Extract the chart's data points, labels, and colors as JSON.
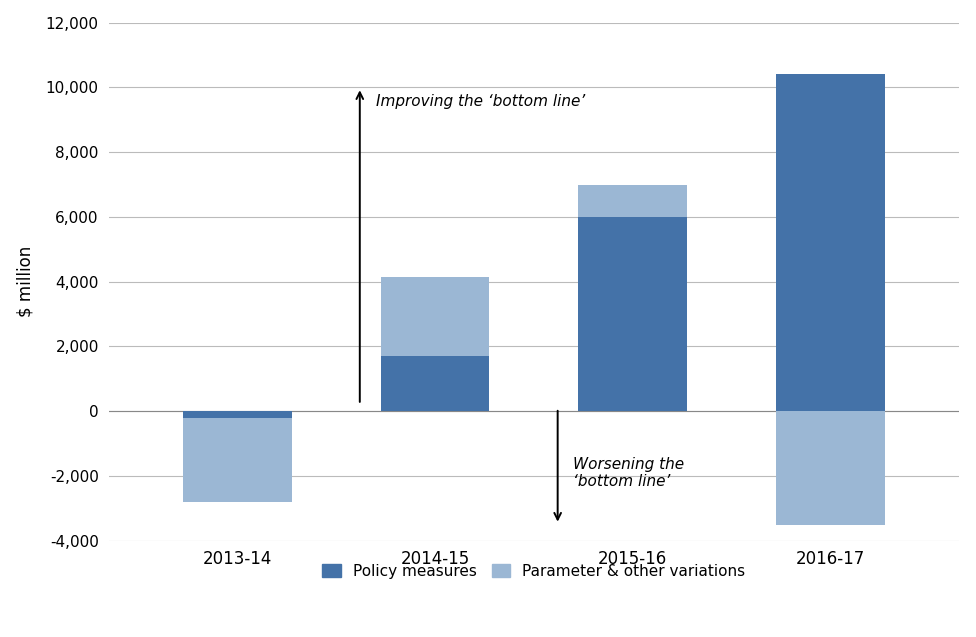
{
  "categories": [
    "2013-14",
    "2014-15",
    "2015-16",
    "2016-17"
  ],
  "policy_measures": [
    -200,
    1700,
    6000,
    10400
  ],
  "param_variations": [
    -2600,
    2450,
    1000,
    -3500
  ],
  "color_policy": "#4472A8",
  "color_param": "#9BB7D4",
  "ylim": [
    -4000,
    12000
  ],
  "yticks": [
    -4000,
    -2000,
    0,
    2000,
    4000,
    6000,
    8000,
    10000,
    12000
  ],
  "ylabel": "$ million",
  "legend_policy": "Policy measures",
  "legend_param": "Parameter & other variations",
  "annotation_improving": "Improving the ‘bottom line’",
  "annotation_worsening": "Worsening the\n‘bottom line’",
  "background_color": "#ffffff",
  "grid_color": "#bbbbbb",
  "bar_width": 0.55
}
